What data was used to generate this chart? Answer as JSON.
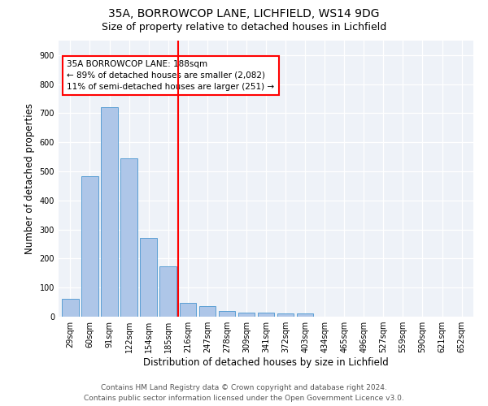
{
  "title1": "35A, BORROWCOP LANE, LICHFIELD, WS14 9DG",
  "title2": "Size of property relative to detached houses in Lichfield",
  "xlabel": "Distribution of detached houses by size in Lichfield",
  "ylabel": "Number of detached properties",
  "categories": [
    "29sqm",
    "60sqm",
    "91sqm",
    "122sqm",
    "154sqm",
    "185sqm",
    "216sqm",
    "247sqm",
    "278sqm",
    "309sqm",
    "341sqm",
    "372sqm",
    "403sqm",
    "434sqm",
    "465sqm",
    "496sqm",
    "527sqm",
    "559sqm",
    "590sqm",
    "621sqm",
    "652sqm"
  ],
  "values": [
    62,
    483,
    720,
    545,
    272,
    172,
    48,
    37,
    20,
    15,
    15,
    10,
    10,
    0,
    0,
    0,
    0,
    0,
    0,
    0,
    0
  ],
  "bar_color": "#aec6e8",
  "bar_edge_color": "#5a9fd4",
  "vline_x_index": 5.5,
  "annotation_line1": "35A BORROWCOP LANE: 188sqm",
  "annotation_line2": "← 89% of detached houses are smaller (2,082)",
  "annotation_line3": "11% of semi-detached houses are larger (251) →",
  "annotation_box_color": "white",
  "annotation_box_edge_color": "red",
  "vline_color": "red",
  "ylim": [
    0,
    950
  ],
  "yticks": [
    0,
    100,
    200,
    300,
    400,
    500,
    600,
    700,
    800,
    900
  ],
  "background_color": "#eef2f8",
  "grid_color": "white",
  "footer_line1": "Contains HM Land Registry data © Crown copyright and database right 2024.",
  "footer_line2": "Contains public sector information licensed under the Open Government Licence v3.0.",
  "title1_fontsize": 10,
  "title2_fontsize": 9,
  "xlabel_fontsize": 8.5,
  "ylabel_fontsize": 8.5,
  "tick_fontsize": 7,
  "annotation_fontsize": 7.5,
  "footer_fontsize": 6.5
}
